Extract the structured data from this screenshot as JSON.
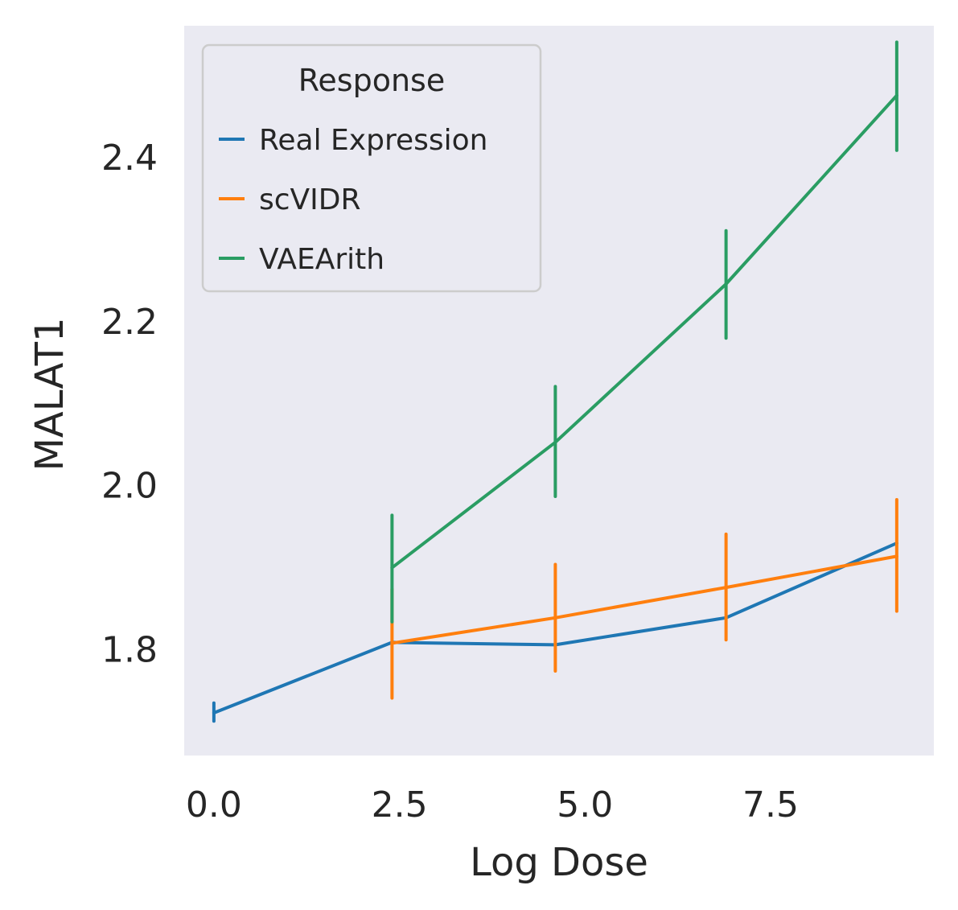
{
  "chart_data": {
    "type": "line",
    "xlabel": "Log Dose",
    "ylabel": "MALAT1",
    "xlim": [
      -0.4,
      9.7
    ],
    "ylim": [
      1.67,
      2.56
    ],
    "xticks": [
      0.0,
      2.5,
      5.0,
      7.5
    ],
    "xtick_labels": [
      "0.0",
      "2.5",
      "5.0",
      "7.5"
    ],
    "yticks": [
      1.8,
      2.0,
      2.2,
      2.4
    ],
    "ytick_labels": [
      "1.8",
      "2.0",
      "2.2",
      "2.4"
    ],
    "grid": false,
    "background": "#eaeaf2",
    "legend": {
      "title": "Response",
      "placement": "top-left",
      "entries": [
        "Real Expression",
        "scVIDR",
        "VAEArith"
      ]
    },
    "series": [
      {
        "name": "Real Expression",
        "color": "#1f77b4",
        "x": [
          0.0,
          2.4,
          4.6,
          6.9,
          9.2
        ],
        "y": [
          1.722,
          1.808,
          1.805,
          1.838,
          1.929
        ],
        "err_low": [
          1.712,
          1.808,
          1.805,
          1.838,
          1.929
        ],
        "err_high": [
          1.734,
          1.808,
          1.805,
          1.838,
          1.929
        ]
      },
      {
        "name": "scVIDR",
        "color": "#ff7f0e",
        "x": [
          2.4,
          4.6,
          6.9,
          9.2
        ],
        "y": [
          1.807,
          1.838,
          1.875,
          1.913
        ],
        "err_low": [
          1.74,
          1.773,
          1.811,
          1.846
        ],
        "err_high": [
          1.873,
          1.903,
          1.94,
          1.982
        ]
      },
      {
        "name": "VAEArith",
        "color": "#2a9d63",
        "x": [
          2.4,
          4.6,
          6.9,
          9.2
        ],
        "y": [
          1.899,
          2.052,
          2.245,
          2.475
        ],
        "err_low": [
          1.833,
          1.986,
          2.179,
          2.408
        ],
        "err_high": [
          1.963,
          2.12,
          2.31,
          2.54
        ]
      }
    ]
  }
}
